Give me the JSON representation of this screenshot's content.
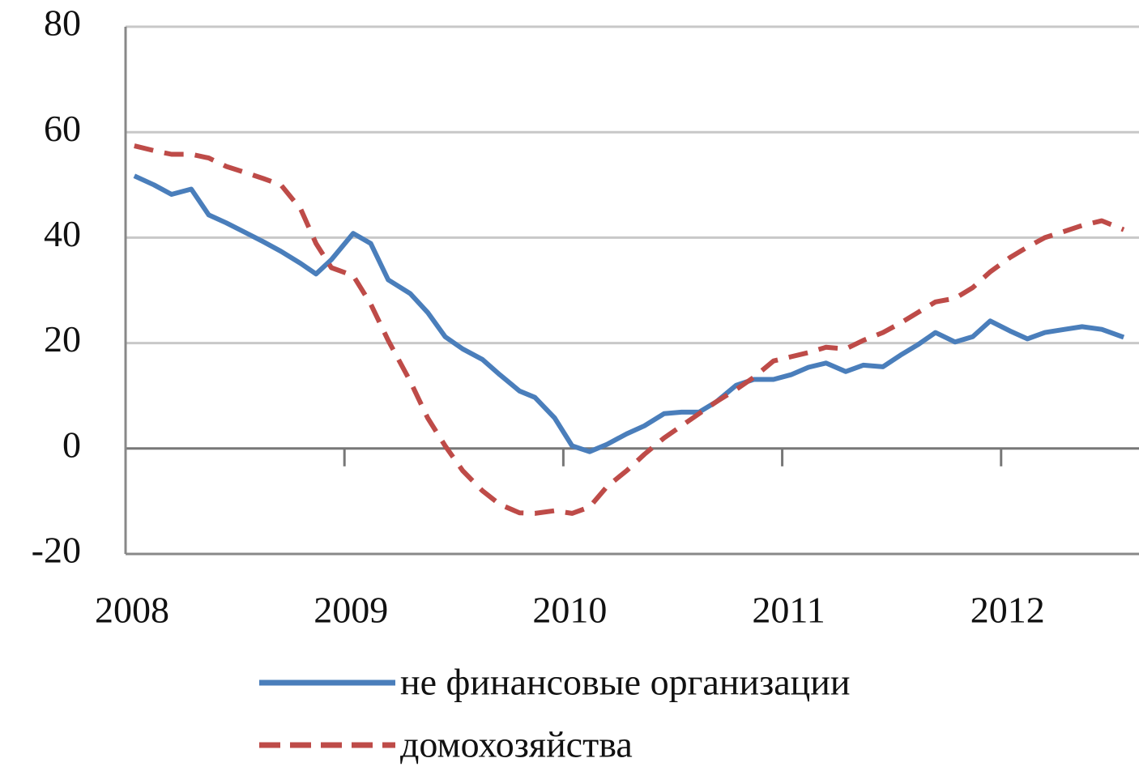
{
  "chart_data": {
    "type": "line",
    "x": [
      2008.04,
      2008.13,
      2008.21,
      2008.3,
      2008.38,
      2008.46,
      2008.55,
      2008.63,
      2008.71,
      2008.8,
      2008.87,
      2008.94,
      2009.04,
      2009.12,
      2009.2,
      2009.3,
      2009.38,
      2009.46,
      2009.54,
      2009.63,
      2009.71,
      2009.8,
      2009.87,
      2009.96,
      2010.04,
      2010.12,
      2010.2,
      2010.29,
      2010.37,
      2010.46,
      2010.54,
      2010.62,
      2010.7,
      2010.79,
      2010.87,
      2010.96,
      2011.04,
      2011.12,
      2011.2,
      2011.29,
      2011.37,
      2011.46,
      2011.54,
      2011.62,
      2011.7,
      2011.79,
      2011.87,
      2011.95,
      2012.04,
      2012.12,
      2012.2,
      2012.29,
      2012.37,
      2012.46,
      2012.56
    ],
    "series": [
      {
        "name": "не финансовые организации",
        "color": "#4a7ebb",
        "dashed": false,
        "values": [
          51.7,
          50,
          48.2,
          49.2,
          44.3,
          42.8,
          40.9,
          39.2,
          37.4,
          35.1,
          33.1,
          35.8,
          40.8,
          38.9,
          32,
          29.4,
          25.8,
          21.2,
          18.9,
          16.9,
          14,
          10.9,
          9.7,
          5.8,
          0.5,
          -0.6,
          0.8,
          2.8,
          4.3,
          6.6,
          6.9,
          6.9,
          8.9,
          12,
          13.1,
          13.1,
          14,
          15.4,
          16.2,
          14.6,
          15.8,
          15.5,
          17.7,
          19.7,
          22,
          20.2,
          21.2,
          24.2,
          22.3,
          20.8,
          22,
          22.6,
          23.1,
          22.6,
          21.1
        ]
      },
      {
        "name": "домохозяйства",
        "color": "#be4b48",
        "dashed": true,
        "values": [
          57.4,
          56.5,
          55.8,
          55.8,
          55.1,
          53.5,
          52.3,
          51.2,
          50,
          45.4,
          38.9,
          34.3,
          32.8,
          27.4,
          20.5,
          12.8,
          5.8,
          0.5,
          -4.2,
          -8,
          -10.6,
          -12.2,
          -12.3,
          -11.8,
          -12.3,
          -11.1,
          -7.2,
          -4.2,
          -1.1,
          2,
          4.3,
          6.6,
          8.9,
          11.2,
          13.5,
          16.6,
          17.4,
          18.2,
          19.2,
          18.9,
          20.5,
          22,
          23.8,
          25.8,
          27.8,
          28.5,
          30.5,
          33.5,
          36.2,
          38.2,
          40,
          41.2,
          42.3,
          43.2,
          41.5
        ]
      }
    ],
    "xlim": [
      2008,
      2012.63
    ],
    "xticks": [
      2008,
      2009,
      2010,
      2011,
      2012
    ],
    "ylim": [
      -20,
      80
    ],
    "yticks": [
      -20,
      0,
      20,
      40,
      60,
      80
    ],
    "grid": true,
    "legend": "bottom"
  }
}
